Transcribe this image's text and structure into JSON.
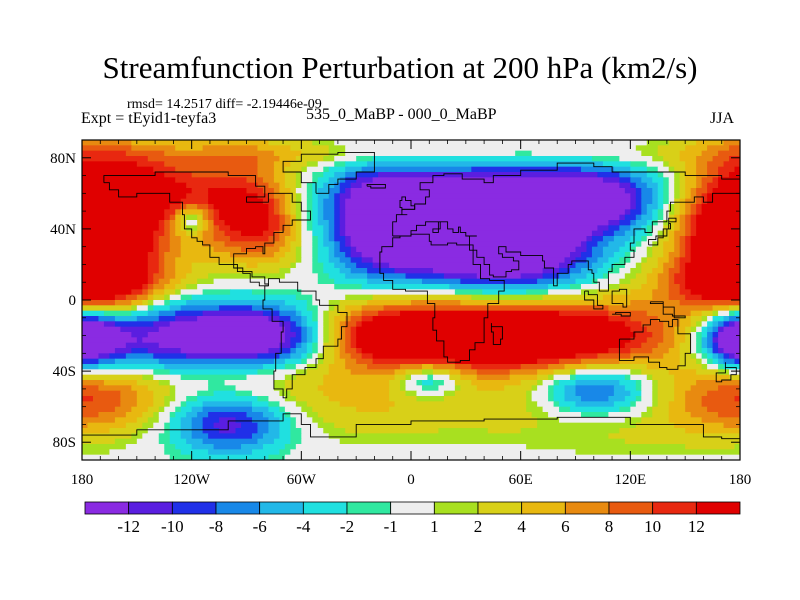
{
  "chart_data": {
    "type": "heatmap",
    "title": "Streamfunction Perturbation at 200 hPa (km2/s)",
    "stats_text": "rmsd= 14.2517 diff= -2.19446e-09",
    "experiment": "Expt = tEyid1-teyfa3",
    "experiment_desc": "535_0_MaBP - 000_0_MaBP",
    "season": "JJA",
    "x_range": [
      -180,
      180
    ],
    "y_range": [
      -90,
      90
    ],
    "x_ticks": [
      {
        "value": -180,
        "label": "180"
      },
      {
        "value": -120,
        "label": "120W"
      },
      {
        "value": -60,
        "label": "60W"
      },
      {
        "value": 0,
        "label": "0"
      },
      {
        "value": 60,
        "label": "60E"
      },
      {
        "value": 120,
        "label": "120E"
      },
      {
        "value": 180,
        "label": "180"
      }
    ],
    "y_ticks": [
      {
        "value": 80,
        "label": "80N"
      },
      {
        "value": 40,
        "label": "40N"
      },
      {
        "value": 0,
        "label": "0"
      },
      {
        "value": -40,
        "label": "40S"
      },
      {
        "value": -80,
        "label": "80S"
      }
    ],
    "contour_levels": [
      -12,
      -10,
      -8,
      -6,
      -4,
      -2,
      -1,
      1,
      2,
      4,
      6,
      8,
      10,
      12
    ],
    "colorbar_labels": [
      "-12",
      "-10",
      "-8",
      "-6",
      "-4",
      "-2",
      "-1",
      "1",
      "2",
      "4",
      "6",
      "8",
      "10",
      "12"
    ],
    "colors": [
      "#8A2BE2",
      "#5A1EE0",
      "#2030E8",
      "#1888E8",
      "#22B8E8",
      "#20E0E0",
      "#30E8A0",
      "#EEEEEE",
      "#A8E020",
      "#D8D018",
      "#E8B810",
      "#E88A10",
      "#E85A10",
      "#E82810",
      "#E00000"
    ]
  }
}
